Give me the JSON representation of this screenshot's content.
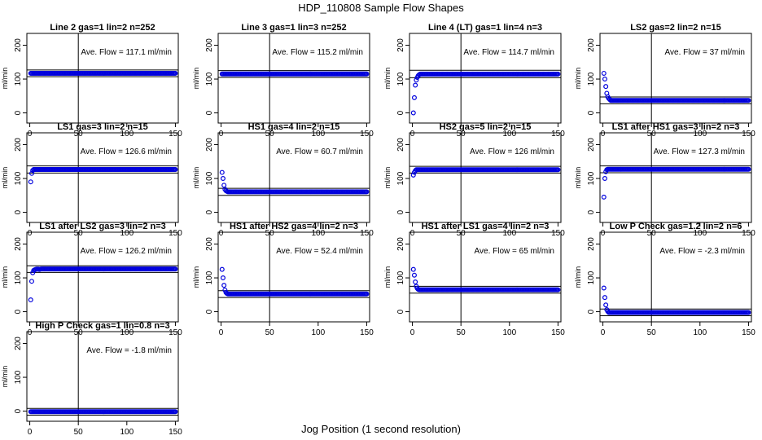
{
  "figure": {
    "title": "HDP_110808  Sample Flow Shapes",
    "xlabel": "Jog Position (1 second resolution)"
  },
  "axes_defaults": {
    "xlim": [
      -3,
      153
    ],
    "ylim": [
      -30,
      235
    ],
    "xticks": [
      0,
      50,
      100,
      150
    ],
    "yticks": [
      0,
      100,
      200
    ],
    "ylabel": "ml/min",
    "vline_x": 50,
    "point_color": "#0000dd",
    "line_color": "#000000"
  },
  "chart_data": [
    {
      "type": "scatter",
      "title": "Line 2 gas=1 lin=2 n=252",
      "annotation": "Ave. Flow =  117.1  ml/min",
      "mean": 117.1,
      "hlines": [
        107,
        127
      ],
      "n_points": 150,
      "initial": []
    },
    {
      "type": "scatter",
      "title": "Line 3 gas=1 lin=3 n=252",
      "annotation": "Ave. Flow =  115.2  ml/min",
      "mean": 115.2,
      "hlines": [
        105,
        125
      ],
      "n_points": 150,
      "initial": []
    },
    {
      "type": "scatter",
      "title": "Line 4 (LT) gas=1 lin=4 n=3",
      "annotation": "Ave. Flow =  114.7  ml/min",
      "mean": 114.7,
      "hlines": [
        104,
        126
      ],
      "n_points": 150,
      "initial": [
        0,
        45,
        82,
        97,
        105,
        110,
        113
      ]
    },
    {
      "type": "scatter",
      "title": "LS2 gas=2 lin=2 n=15",
      "annotation": "Ave. Flow =  37  ml/min",
      "mean": 37,
      "hlines": [
        27,
        47
      ],
      "n_points": 150,
      "initial": [
        117,
        100,
        78,
        58,
        48,
        43,
        40
      ]
    },
    {
      "type": "scatter",
      "title": "LS1 gas=3 lin=2 n=15",
      "annotation": "Ave. Flow =  126.6  ml/min",
      "mean": 126.6,
      "hlines": [
        116,
        137
      ],
      "n_points": 150,
      "initial": [
        90,
        115,
        124
      ]
    },
    {
      "type": "scatter",
      "title": "HS1 gas=4 lin=2 n=15",
      "annotation": "Ave. Flow =  60.7  ml/min",
      "mean": 60.7,
      "hlines": [
        50,
        71
      ],
      "n_points": 150,
      "initial": [
        118,
        100,
        80,
        68,
        64,
        62
      ]
    },
    {
      "type": "scatter",
      "title": "HS2 gas=5 lin=2 n=15",
      "annotation": "Ave. Flow =  126  ml/min",
      "mean": 126,
      "hlines": [
        116,
        136
      ],
      "n_points": 150,
      "initial": [
        110,
        118,
        123
      ]
    },
    {
      "type": "scatter",
      "title": "LS1 after HS1 gas=3 lin=2 n=3",
      "annotation": "Ave. Flow =  127.3  ml/min",
      "mean": 127.3,
      "hlines": [
        117,
        137
      ],
      "n_points": 150,
      "initial": [
        45,
        100,
        120,
        126
      ]
    },
    {
      "type": "scatter",
      "title": "LS1 after LS2 gas=3 lin=2 n=3",
      "annotation": "Ave. Flow =  126.2  ml/min",
      "mean": 126.2,
      "hlines": [
        116,
        136
      ],
      "n_points": 150,
      "initial": [
        35,
        90,
        115,
        122,
        124,
        125,
        126,
        126,
        126,
        125,
        126
      ]
    },
    {
      "type": "scatter",
      "title": "HS1 after HS2 gas=4 lin=2 n=3",
      "annotation": "Ave. Flow =  52.4  ml/min",
      "mean": 52.4,
      "hlines": [
        42,
        62
      ],
      "n_points": 150,
      "initial": [
        125,
        100,
        78,
        64,
        57,
        54
      ]
    },
    {
      "type": "scatter",
      "title": "HS1 after LS1 gas=4 lin=2 n=3",
      "annotation": "Ave. Flow =  65  ml/min",
      "mean": 65,
      "hlines": [
        55,
        75
      ],
      "n_points": 150,
      "initial": [
        125,
        108,
        88,
        75,
        69,
        66
      ]
    },
    {
      "type": "scatter",
      "title": "Low P Check gas=1.2 lin=2 n=6",
      "annotation": "Ave. Flow =  -2.3  ml/min",
      "mean": -2.3,
      "hlines": [
        -12,
        8
      ],
      "n_points": 150,
      "initial": [
        70,
        42,
        20,
        6,
        1
      ]
    },
    {
      "type": "scatter",
      "title": "High P Check gas=1 lin=0.8 n=3",
      "annotation": "Ave. Flow =  -1.8  ml/min",
      "mean": -1.8,
      "hlines": [
        -12,
        8
      ],
      "n_points": 150,
      "initial": []
    }
  ]
}
